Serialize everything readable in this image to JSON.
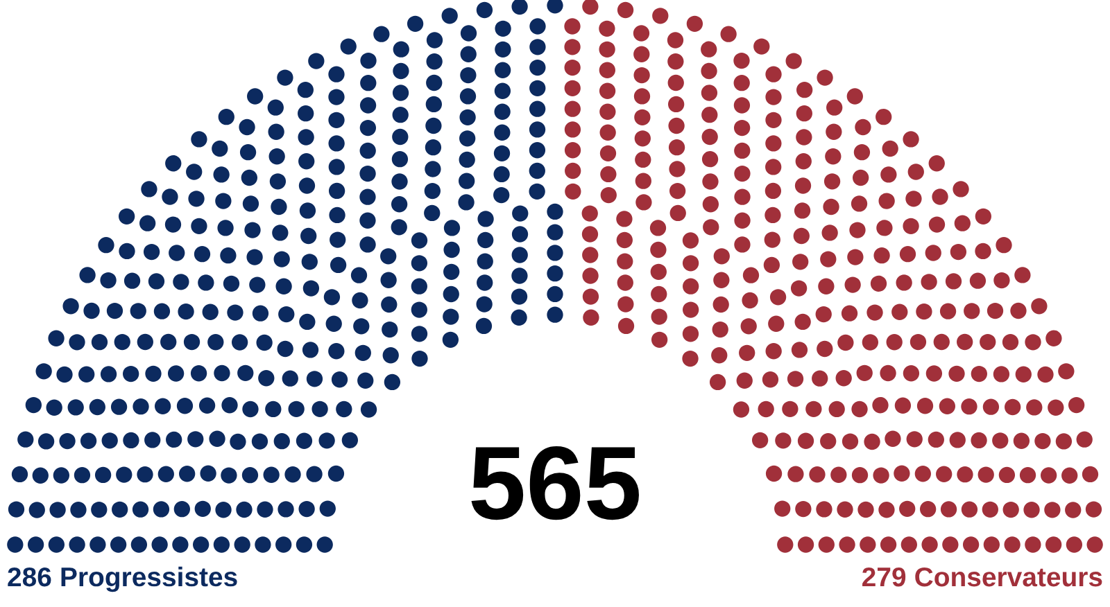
{
  "chart_data": {
    "type": "other",
    "categories": [
      "Progressistes",
      "Conservateurs"
    ],
    "values": [
      286,
      279
    ],
    "colors": [
      "#0c2a5f",
      "#a1303a"
    ],
    "data_labels": true,
    "annotations": [
      "565"
    ]
  }
}
